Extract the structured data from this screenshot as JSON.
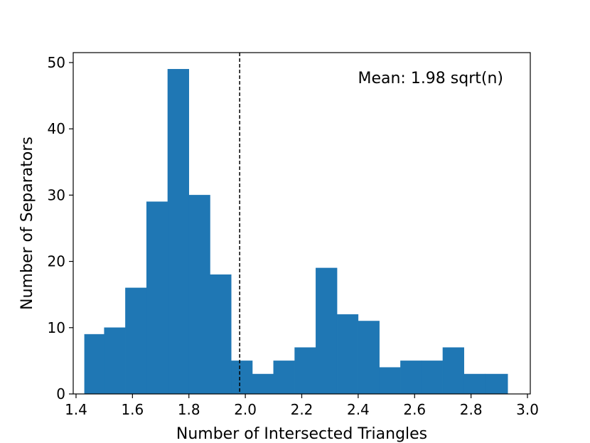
{
  "chart_data": {
    "type": "bar",
    "title": "",
    "xlabel": "Number of Intersected Triangles",
    "ylabel": "Number of Separators",
    "xlim": [
      1.39,
      3.01
    ],
    "ylim": [
      0,
      51.5
    ],
    "xticks": [
      1.4,
      1.6,
      1.8,
      2.0,
      2.2,
      2.4,
      2.6,
      2.8,
      3.0
    ],
    "xtick_labels": [
      "1.4",
      "1.6",
      "1.8",
      "2.0",
      "2.2",
      "2.4",
      "2.6",
      "2.8",
      "3.0"
    ],
    "yticks": [
      0,
      10,
      20,
      30,
      40,
      50
    ],
    "ytick_labels": [
      "0",
      "10",
      "20",
      "30",
      "40",
      "50"
    ],
    "bin_edges": [
      1.43,
      1.5,
      1.575,
      1.65,
      1.725,
      1.8,
      1.875,
      1.95,
      2.025,
      2.1,
      2.175,
      2.25,
      2.325,
      2.4,
      2.475,
      2.55,
      2.625,
      2.7,
      2.775,
      2.85,
      2.93
    ],
    "values": [
      9,
      10,
      16,
      29,
      49,
      30,
      18,
      5,
      3,
      5,
      7,
      19,
      12,
      11,
      4,
      5,
      5,
      7,
      3,
      3
    ],
    "bar_color": "#1f77b4",
    "mean_line": {
      "x": 1.98,
      "style": "dashed",
      "color": "#000000"
    },
    "annotation": "Mean: 1.98 sqrt(n)",
    "grid": false,
    "legend": "none"
  }
}
